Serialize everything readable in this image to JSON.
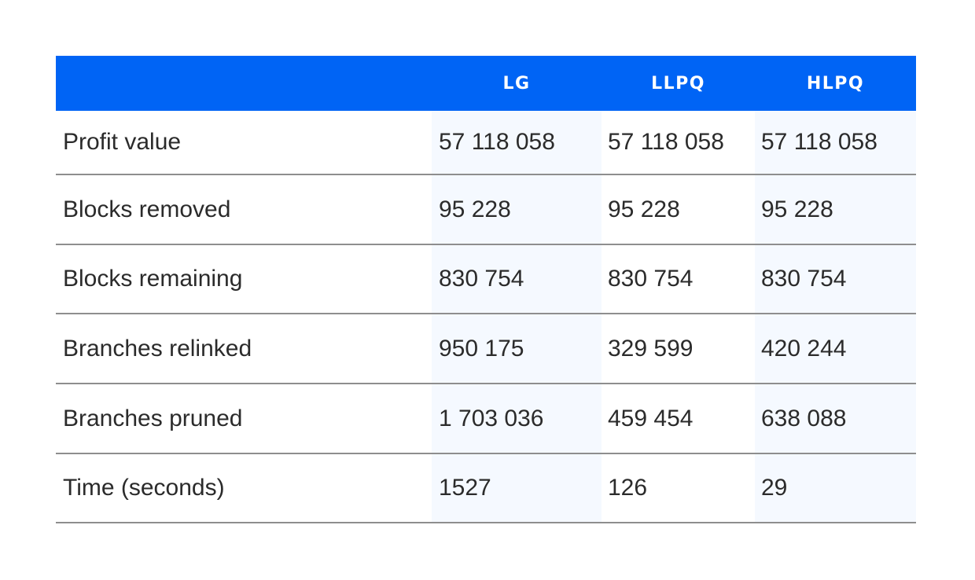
{
  "table": {
    "columns": [
      "",
      "LG",
      "LLPQ",
      "HLPQ"
    ],
    "rows": [
      {
        "label": "Profit value",
        "values": [
          "57 118 058",
          "57 118 058",
          "57 118 058"
        ]
      },
      {
        "label": "Blocks removed",
        "values": [
          "95 228",
          "95 228",
          "95 228"
        ]
      },
      {
        "label": "Blocks remaining",
        "values": [
          "830 754",
          "830 754",
          "830 754"
        ]
      },
      {
        "label": "Branches relinked",
        "values": [
          "950 175",
          "329 599",
          "420 244"
        ]
      },
      {
        "label": "Branches pruned",
        "values": [
          "1 703 036",
          "459 454",
          "638 088"
        ]
      },
      {
        "label": "Time (seconds)",
        "values": [
          "1527",
          "126",
          "29"
        ]
      }
    ]
  },
  "colors": {
    "header_bg": "#0064f5",
    "header_text": "#ffffff",
    "body_text": "#2b2b2b",
    "shade": "#f5f9ff",
    "divider": "#8e8e8e"
  }
}
